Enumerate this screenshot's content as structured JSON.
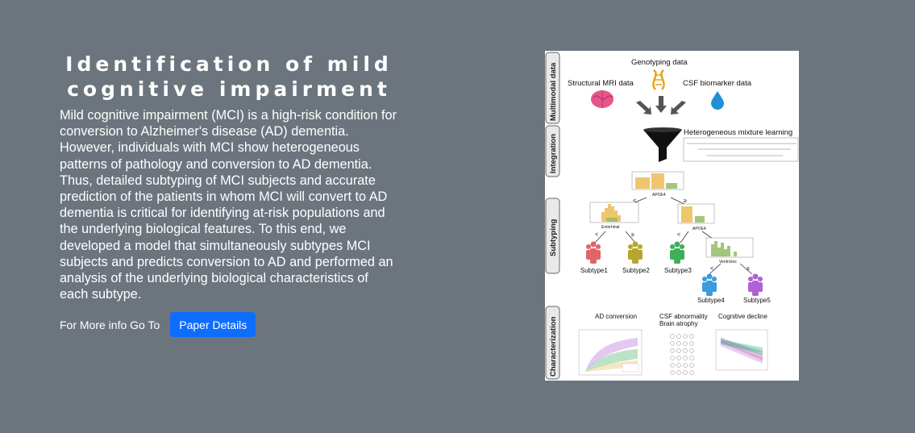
{
  "hero": {
    "title_line1": "Identification of mild",
    "title_line2": "cognitive impairment",
    "description": "Mild cognitive impairment (MCI) is a high-risk condition for conversion to Alzheimer's disease (AD) dementia. However, individuals with MCI show heterogeneous patterns of pathology and conversion to AD dementia. Thus, detailed subtyping of MCI subjects and accurate prediction of the patients in whom MCI will convert to AD dementia is critical for identifying at-risk populations and the underlying biological features. To this end, we developed a model that simultaneously subtypes MCI subjects and predicts conversion to AD and performed an analysis of the underlying biological characteristics of each subtype.",
    "more_info_label": "For More info Go To",
    "button_label": "Paper Details"
  },
  "figure": {
    "sections": [
      "Multimodal data",
      "Integration",
      "Subtyping",
      "Characterization"
    ],
    "genotyping": "Genotyping data",
    "mri": "Structural MRI data",
    "csf": "CSF biomarker data",
    "hml": "Heterogeneous mixture learning",
    "apoe4": "APOE4",
    "entorhinal": "Entorhinal",
    "ventricles": "Ventricles",
    "lt": "<",
    "ge": "≥",
    "subtypes": [
      "Subtype1",
      "Subtype2",
      "Subtype3",
      "Subtype4",
      "Subtype5"
    ],
    "ad_conversion": "AD conversion",
    "csf_abnormality": "CSF abnormality",
    "brain_atrophy": "Brain atrophy",
    "cognitive_decline": "Cognitive decline"
  },
  "colors": {
    "background": "#6c757d",
    "button": "#0d6efd",
    "subtype_colors": [
      "#e06666",
      "#b5a62f",
      "#3fae5a",
      "#3d9bd9",
      "#b061d6"
    ]
  }
}
